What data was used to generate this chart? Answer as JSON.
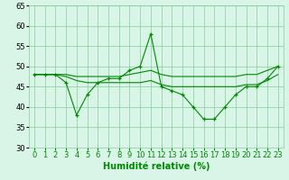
{
  "x": [
    0,
    1,
    2,
    3,
    4,
    5,
    6,
    7,
    8,
    9,
    10,
    11,
    12,
    13,
    14,
    15,
    16,
    17,
    18,
    19,
    20,
    21,
    22,
    23
  ],
  "line_main": [
    48,
    48,
    48,
    46,
    38,
    43,
    46,
    47,
    47,
    49,
    50,
    58,
    45,
    44,
    43,
    40,
    37,
    37,
    40,
    43,
    45,
    45,
    47,
    50
  ],
  "line_upper": [
    48,
    48,
    48,
    48,
    47.5,
    47.5,
    47.5,
    47.5,
    47.5,
    48,
    48.5,
    49,
    48,
    47.5,
    47.5,
    47.5,
    47.5,
    47.5,
    47.5,
    47.5,
    48,
    48,
    49,
    50
  ],
  "line_lower": [
    48,
    48,
    48,
    47.5,
    46.5,
    46,
    46,
    46,
    46,
    46,
    46,
    46.5,
    45.5,
    45,
    45,
    45,
    45,
    45,
    45,
    45,
    45.5,
    45.5,
    46.5,
    48
  ],
  "line_color": "#008800",
  "bg_color": "#d8f5e8",
  "grid_color": "#88cc99",
  "xlabel": "Humidité relative (%)",
  "xlabel_fontsize": 7,
  "tick_fontsize": 6,
  "xlim": [
    -0.5,
    23.5
  ],
  "ylim": [
    30,
    65
  ],
  "yticks": [
    30,
    35,
    40,
    45,
    50,
    55,
    60,
    65
  ],
  "xticks": [
    0,
    1,
    2,
    3,
    4,
    5,
    6,
    7,
    8,
    9,
    10,
    11,
    12,
    13,
    14,
    15,
    16,
    17,
    18,
    19,
    20,
    21,
    22,
    23
  ]
}
